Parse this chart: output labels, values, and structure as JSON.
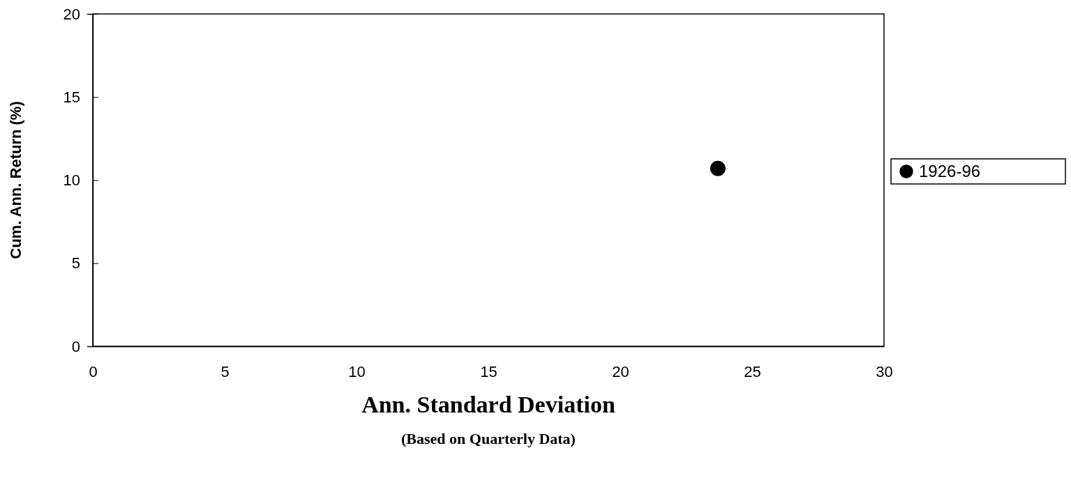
{
  "chart_data": {
    "type": "scatter",
    "xlabel": "Ann. Standard Deviation",
    "subtitle": "(Based on Quarterly Data)",
    "ylabel": "Cum. Ann. Return (%)",
    "series": [
      {
        "name": "1926-96",
        "color": "#000000",
        "x": [
          23.7
        ],
        "values": [
          10.7
        ]
      }
    ],
    "xlim": [
      0,
      30
    ],
    "xticks": [
      0,
      5,
      10,
      15,
      20,
      25,
      30
    ],
    "ylim": [
      0,
      20
    ],
    "yticks": [
      0,
      5,
      10,
      15,
      20
    ],
    "grid": false,
    "legend": "right",
    "marker": "circle"
  }
}
